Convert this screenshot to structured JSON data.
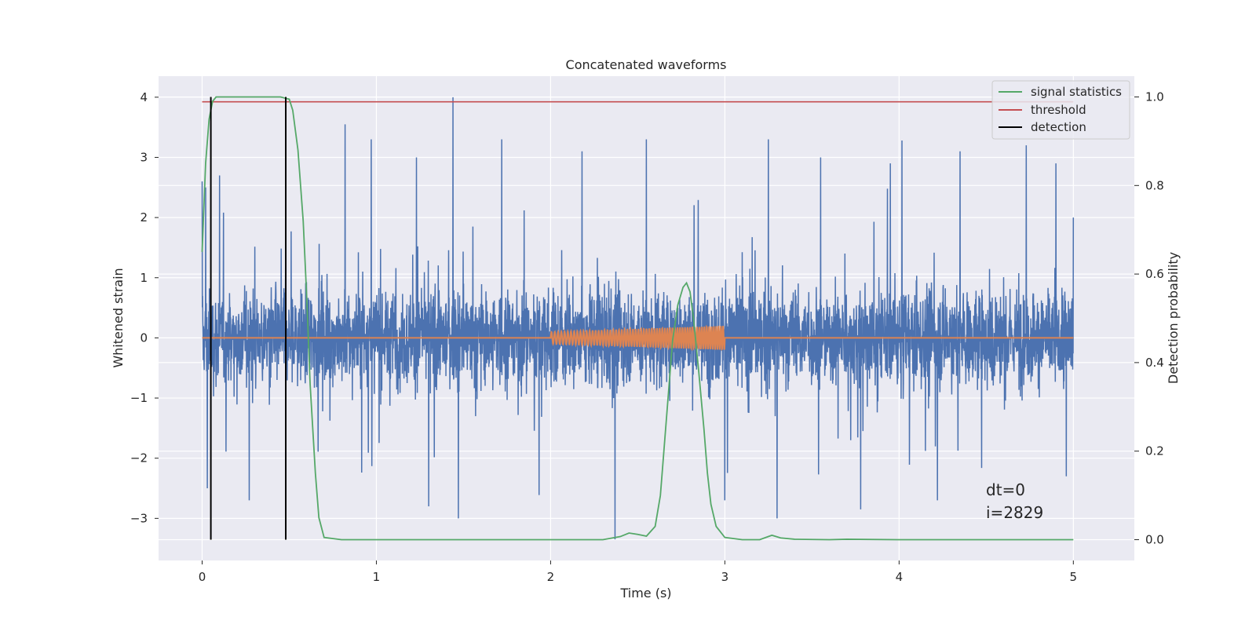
{
  "chart_data": {
    "type": "line",
    "title": "Concatenated waveforms",
    "xlabel": "Time (s)",
    "ylabel": "Whitened strain",
    "y2label": "Detection probability",
    "xlim": [
      -0.25,
      5.35
    ],
    "ylim": [
      -3.7,
      4.35
    ],
    "y2lim": [
      -0.047,
      1.047
    ],
    "xticks": [
      0,
      1,
      2,
      3,
      4,
      5
    ],
    "yticks": [
      -3,
      -2,
      -1,
      0,
      1,
      2,
      3,
      4
    ],
    "y2ticks": [
      0.0,
      0.2,
      0.4,
      0.6,
      0.8,
      1.0
    ],
    "grid": true,
    "legend_position": "top-right",
    "legend": [
      {
        "name": "signal statistics",
        "color": "#55a868"
      },
      {
        "name": "threshold",
        "color": "#c44e52"
      },
      {
        "name": "detection",
        "color": "#000000"
      }
    ],
    "colors": {
      "strain": "#4c72b0",
      "template": "#dd8452",
      "signal_statistics": "#55a868",
      "threshold": "#c44e52",
      "detection": "#000000",
      "background": "#eaeaf2",
      "grid": "#ffffff"
    },
    "strain": {
      "x_range": [
        0,
        5
      ],
      "typical_amplitude": 0.45,
      "peak_max": 4.0,
      "peak_min": -3.35,
      "spikes": [
        {
          "x": 0.0,
          "y": 2.6
        },
        {
          "x": 0.02,
          "y": 2.5
        },
        {
          "x": 0.03,
          "y": -2.5
        },
        {
          "x": 0.1,
          "y": 2.7
        },
        {
          "x": 0.27,
          "y": -2.7
        },
        {
          "x": 0.48,
          "y": -2.45
        },
        {
          "x": 0.82,
          "y": 3.55
        },
        {
          "x": 0.97,
          "y": 3.3
        },
        {
          "x": 1.23,
          "y": 3.0
        },
        {
          "x": 1.3,
          "y": -2.8
        },
        {
          "x": 1.44,
          "y": 4.0
        },
        {
          "x": 1.47,
          "y": -3.0
        },
        {
          "x": 1.72,
          "y": 3.3
        },
        {
          "x": 2.18,
          "y": 3.1
        },
        {
          "x": 2.37,
          "y": -3.35
        },
        {
          "x": 2.55,
          "y": 3.3
        },
        {
          "x": 3.0,
          "y": -2.7
        },
        {
          "x": 3.25,
          "y": 3.3
        },
        {
          "x": 3.3,
          "y": -3.0
        },
        {
          "x": 3.55,
          "y": 3.0
        },
        {
          "x": 3.78,
          "y": -2.85
        },
        {
          "x": 3.95,
          "y": 2.9
        },
        {
          "x": 4.22,
          "y": -2.7
        },
        {
          "x": 4.35,
          "y": 3.1
        },
        {
          "x": 4.73,
          "y": 3.2
        },
        {
          "x": 4.9,
          "y": 2.9
        },
        {
          "x": 4.96,
          "y": -2.3
        },
        {
          "x": 5.0,
          "y": 2.0
        }
      ]
    },
    "template": {
      "x_range": [
        0,
        5
      ],
      "chirp_x_range": [
        2.0,
        3.0
      ],
      "chirp_amplitude_start": 0.1,
      "chirp_amplitude_end": 0.2,
      "value_outside_chirp": 0
    },
    "signal_statistics": {
      "x": [
        0.0,
        0.02,
        0.04,
        0.06,
        0.08,
        0.12,
        0.2,
        0.3,
        0.45,
        0.5,
        0.52,
        0.55,
        0.58,
        0.6,
        0.62,
        0.65,
        0.67,
        0.7,
        0.8,
        1.0,
        1.5,
        2.0,
        2.3,
        2.4,
        2.45,
        2.5,
        2.55,
        2.6,
        2.63,
        2.65,
        2.68,
        2.7,
        2.73,
        2.76,
        2.78,
        2.8,
        2.82,
        2.85,
        2.88,
        2.9,
        2.92,
        2.95,
        3.0,
        3.1,
        3.2,
        3.27,
        3.32,
        3.4,
        3.6,
        3.7,
        4.0,
        4.5,
        5.0
      ],
      "y": [
        0.65,
        0.85,
        0.95,
        0.99,
        1.0,
        1.0,
        1.0,
        1.0,
        1.0,
        0.995,
        0.97,
        0.88,
        0.72,
        0.55,
        0.35,
        0.15,
        0.05,
        0.005,
        0.0,
        0.0,
        0.0,
        0.0,
        0.0,
        0.007,
        0.015,
        0.012,
        0.008,
        0.03,
        0.1,
        0.2,
        0.35,
        0.45,
        0.53,
        0.57,
        0.58,
        0.56,
        0.5,
        0.38,
        0.25,
        0.15,
        0.08,
        0.03,
        0.005,
        0.0,
        0.0,
        0.01,
        0.004,
        0.001,
        0.0,
        0.001,
        0.0,
        0.0,
        0.0
      ]
    },
    "threshold": {
      "x": [
        0,
        5
      ],
      "value": 0.989
    },
    "detections": [
      0.05,
      0.48
    ],
    "annotations": [
      "dt=0",
      "i=2829"
    ]
  }
}
